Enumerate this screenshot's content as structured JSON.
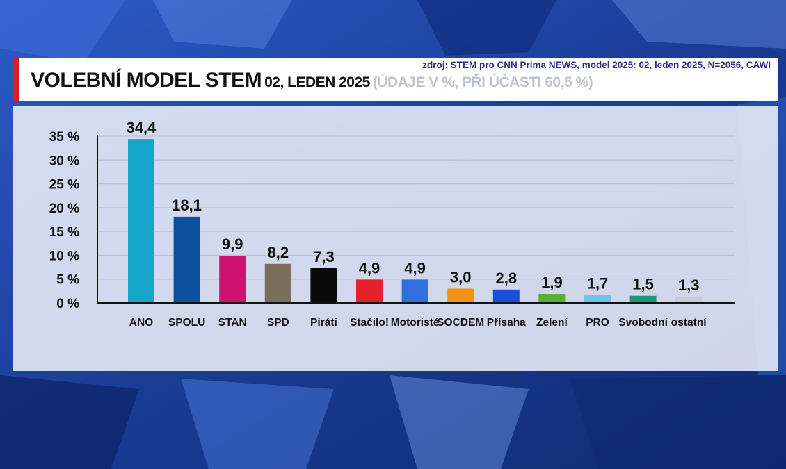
{
  "header": {
    "source": "zdroj: STEM pro CNN Prima NEWS, model 2025: 02, leden 2025, N=2056, CAWI",
    "title_main": "VOLEBNÍ MODEL STEM",
    "title_sub": "02, LEDEN 2025",
    "title_note": "(ÚDAJE V %, PŘI ÚČASTI 60,5 %)"
  },
  "colors": {
    "background": "#1d3f9a",
    "accent_red": "#d81f1f",
    "source_text": "#2a2d8a",
    "title_note": "#bfc3cf"
  },
  "chart_data": {
    "type": "bar",
    "categories": [
      "ANO",
      "SPOLU",
      "STAN",
      "SPD",
      "Piráti",
      "Stačilo!",
      "Motoristé",
      "SOCDEM",
      "Přísaha",
      "Zelení",
      "PRO",
      "Svobodní",
      "ostatní"
    ],
    "values": [
      34.4,
      18.1,
      9.9,
      8.2,
      7.3,
      4.9,
      4.9,
      3.0,
      2.8,
      1.9,
      1.7,
      1.5,
      1.3
    ],
    "value_labels": [
      "34,4",
      "18,1",
      "9,9",
      "8,2",
      "7,3",
      "4,9",
      "4,9",
      "3,0",
      "2,8",
      "1,9",
      "1,7",
      "1,5",
      "1,3"
    ],
    "colors": [
      "#14a5c8",
      "#0d4f9e",
      "#d0136f",
      "#7a6e5c",
      "#0a0a0a",
      "#e4212a",
      "#2f6fe0",
      "#f39314",
      "#1b4fd8",
      "#5ab030",
      "#72c2e0",
      "#1a9778",
      "#c7cbd6"
    ],
    "yticks": [
      0,
      5,
      10,
      15,
      20,
      25,
      30,
      35
    ],
    "ytick_labels": [
      "0 %",
      "5 %",
      "10 %",
      "15 %",
      "20 %",
      "25 %",
      "30 %",
      "35 %"
    ],
    "ylim": [
      0,
      35
    ],
    "grid": true,
    "title": "",
    "xlabel": "",
    "ylabel": ""
  }
}
